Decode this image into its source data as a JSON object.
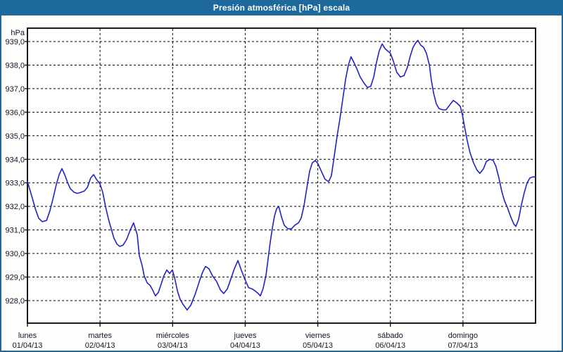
{
  "window": {
    "title": "Presión atmosférica [hPa] escala"
  },
  "colors": {
    "titlebar_bg": "#1e699c",
    "window_border": "#1e699c",
    "background": "#fdfefc",
    "plot_bg": "#ffffff",
    "line": "#2121c8",
    "grid": "#000000",
    "frame": "#000000",
    "text": "#14142a",
    "title_text": "#ffffff"
  },
  "chart_data": {
    "type": "line",
    "title": "Presión atmosférica [hPa] escala",
    "xlabel": "",
    "ylabel": "hPa",
    "ylim": [
      927.05,
      939.55
    ],
    "grid": "dashed",
    "legend": "none",
    "hours_per_day": 24,
    "x_hours_total": 168,
    "y_ticks": [
      {
        "value": 939,
        "label": "939,0"
      },
      {
        "value": 938,
        "label": "938,0"
      },
      {
        "value": 937,
        "label": "937,0"
      },
      {
        "value": 936,
        "label": "936,0"
      },
      {
        "value": 935,
        "label": "935,0"
      },
      {
        "value": 934,
        "label": "934,0"
      },
      {
        "value": 933,
        "label": "933,0"
      },
      {
        "value": 932,
        "label": "932,0"
      },
      {
        "value": 931,
        "label": "931,0"
      },
      {
        "value": 930,
        "label": "930,0"
      },
      {
        "value": 929,
        "label": "929,0"
      },
      {
        "value": 928,
        "label": "928,0"
      }
    ],
    "x_categories": [
      {
        "name": "lunes",
        "date": "01/04/13"
      },
      {
        "name": "martes",
        "date": "02/04/13"
      },
      {
        "name": "miércoles",
        "date": "03/04/13"
      },
      {
        "name": "jueves",
        "date": "04/04/13"
      },
      {
        "name": "viernes",
        "date": "05/04/13"
      },
      {
        "name": "sábado",
        "date": "06/04/13"
      },
      {
        "name": "domingo",
        "date": "07/04/13"
      }
    ],
    "series": [
      {
        "name": "Presión atmosférica [hPa]",
        "points": [
          [
            0,
            933.05
          ],
          [
            1.4,
            932.45
          ],
          [
            2.6,
            931.9
          ],
          [
            3.7,
            931.5
          ],
          [
            4.9,
            931.35
          ],
          [
            6.3,
            931.4
          ],
          [
            7.4,
            931.8
          ],
          [
            8.4,
            932.3
          ],
          [
            9.5,
            932.9
          ],
          [
            10.5,
            933.35
          ],
          [
            11.4,
            933.6
          ],
          [
            12.3,
            933.35
          ],
          [
            13.3,
            933.0
          ],
          [
            14.2,
            932.75
          ],
          [
            15.4,
            932.6
          ],
          [
            16.5,
            932.55
          ],
          [
            17.7,
            932.6
          ],
          [
            18.8,
            932.65
          ],
          [
            19.8,
            932.8
          ],
          [
            20.9,
            933.2
          ],
          [
            21.9,
            933.35
          ],
          [
            22.8,
            933.15
          ],
          [
            24.0,
            932.95
          ],
          [
            24.9,
            932.6
          ],
          [
            25.8,
            932.0
          ],
          [
            26.8,
            931.45
          ],
          [
            27.7,
            931.05
          ],
          [
            28.6,
            930.65
          ],
          [
            29.6,
            930.4
          ],
          [
            30.5,
            930.3
          ],
          [
            31.6,
            930.35
          ],
          [
            32.8,
            930.6
          ],
          [
            34.0,
            931.0
          ],
          [
            35.1,
            931.3
          ],
          [
            36.3,
            930.8
          ],
          [
            37.0,
            929.9
          ],
          [
            37.9,
            929.5
          ],
          [
            38.6,
            929.05
          ],
          [
            39.6,
            928.75
          ],
          [
            40.5,
            928.65
          ],
          [
            41.4,
            928.45
          ],
          [
            42.3,
            928.2
          ],
          [
            43.3,
            928.35
          ],
          [
            44.2,
            928.7
          ],
          [
            45.1,
            929.05
          ],
          [
            46.1,
            929.3
          ],
          [
            47.0,
            929.15
          ],
          [
            47.9,
            929.3
          ],
          [
            48.6,
            929.0
          ],
          [
            49.6,
            928.4
          ],
          [
            50.5,
            928.05
          ],
          [
            51.4,
            927.85
          ],
          [
            52.8,
            927.6
          ],
          [
            54.0,
            927.8
          ],
          [
            55.4,
            928.25
          ],
          [
            56.8,
            928.8
          ],
          [
            57.9,
            929.2
          ],
          [
            58.9,
            929.45
          ],
          [
            60.0,
            929.35
          ],
          [
            61.2,
            929.05
          ],
          [
            62.6,
            928.8
          ],
          [
            63.8,
            928.45
          ],
          [
            64.9,
            928.3
          ],
          [
            66.1,
            928.5
          ],
          [
            67.2,
            928.9
          ],
          [
            68.4,
            929.35
          ],
          [
            69.6,
            929.7
          ],
          [
            70.7,
            929.3
          ],
          [
            71.9,
            928.9
          ],
          [
            73.1,
            928.55
          ],
          [
            74.2,
            928.5
          ],
          [
            75.4,
            928.4
          ],
          [
            76.3,
            928.3
          ],
          [
            77.0,
            928.2
          ],
          [
            77.9,
            928.5
          ],
          [
            78.9,
            929.1
          ],
          [
            79.6,
            929.8
          ],
          [
            80.3,
            930.5
          ],
          [
            81.0,
            931.1
          ],
          [
            81.7,
            931.6
          ],
          [
            82.4,
            931.9
          ],
          [
            83.1,
            932.0
          ],
          [
            84.0,
            931.55
          ],
          [
            84.9,
            931.2
          ],
          [
            86.1,
            931.05
          ],
          [
            87.3,
            931.05
          ],
          [
            88.4,
            931.2
          ],
          [
            89.6,
            931.3
          ],
          [
            90.5,
            931.5
          ],
          [
            91.4,
            932.0
          ],
          [
            92.4,
            932.8
          ],
          [
            93.3,
            933.5
          ],
          [
            94.2,
            933.85
          ],
          [
            95.2,
            933.95
          ],
          [
            96.1,
            933.8
          ],
          [
            97.3,
            933.45
          ],
          [
            98.4,
            933.15
          ],
          [
            99.6,
            933.05
          ],
          [
            100.5,
            933.3
          ],
          [
            101.4,
            934.1
          ],
          [
            102.4,
            935.0
          ],
          [
            103.3,
            935.7
          ],
          [
            104.2,
            936.5
          ],
          [
            105.2,
            937.4
          ],
          [
            106.1,
            938.0
          ],
          [
            107.0,
            938.35
          ],
          [
            108.0,
            938.1
          ],
          [
            108.9,
            937.85
          ],
          [
            110.0,
            937.5
          ],
          [
            111.2,
            937.25
          ],
          [
            112.4,
            937.05
          ],
          [
            113.5,
            937.1
          ],
          [
            114.5,
            937.5
          ],
          [
            115.4,
            938.1
          ],
          [
            116.3,
            938.6
          ],
          [
            117.3,
            938.9
          ],
          [
            118.2,
            938.7
          ],
          [
            119.1,
            938.6
          ],
          [
            120.0,
            938.5
          ],
          [
            120.9,
            938.2
          ],
          [
            122.1,
            937.7
          ],
          [
            123.3,
            937.5
          ],
          [
            124.5,
            937.55
          ],
          [
            125.6,
            937.9
          ],
          [
            126.6,
            938.4
          ],
          [
            127.5,
            938.75
          ],
          [
            128.4,
            938.95
          ],
          [
            129.1,
            939.05
          ],
          [
            130.0,
            938.85
          ],
          [
            131.0,
            938.75
          ],
          [
            131.9,
            938.5
          ],
          [
            132.9,
            938.0
          ],
          [
            133.5,
            937.4
          ],
          [
            134.3,
            936.8
          ],
          [
            135.2,
            936.35
          ],
          [
            136.1,
            936.15
          ],
          [
            137.3,
            936.1
          ],
          [
            138.4,
            936.1
          ],
          [
            139.6,
            936.3
          ],
          [
            140.8,
            936.5
          ],
          [
            141.9,
            936.4
          ],
          [
            143.1,
            936.25
          ],
          [
            143.8,
            935.9
          ],
          [
            144.5,
            935.4
          ],
          [
            145.4,
            934.8
          ],
          [
            146.3,
            934.3
          ],
          [
            147.5,
            933.85
          ],
          [
            148.6,
            933.55
          ],
          [
            149.6,
            933.4
          ],
          [
            150.8,
            933.6
          ],
          [
            151.7,
            933.9
          ],
          [
            152.9,
            934.0
          ],
          [
            154.0,
            933.95
          ],
          [
            154.9,
            933.7
          ],
          [
            155.9,
            933.2
          ],
          [
            156.8,
            932.65
          ],
          [
            157.7,
            932.25
          ],
          [
            158.7,
            931.95
          ],
          [
            159.8,
            931.55
          ],
          [
            160.8,
            931.25
          ],
          [
            161.5,
            931.15
          ],
          [
            162.4,
            931.45
          ],
          [
            163.3,
            932.05
          ],
          [
            164.3,
            932.6
          ],
          [
            165.2,
            933.0
          ],
          [
            166.1,
            933.2
          ],
          [
            167.0,
            933.25
          ],
          [
            168.0,
            933.25
          ]
        ]
      }
    ]
  }
}
